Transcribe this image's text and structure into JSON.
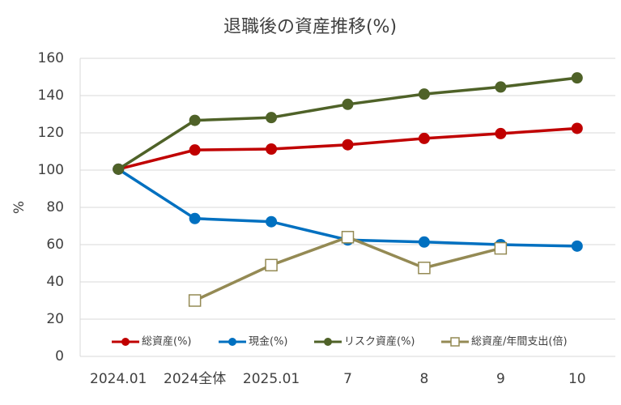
{
  "chart_data": {
    "type": "line",
    "title": "退職後の資産推移(%)",
    "y_label": "%",
    "categories": [
      "2024.01",
      "2024全体",
      "2025.01",
      "7",
      "8",
      "9",
      "10"
    ],
    "series": [
      {
        "name": "総資産(%)",
        "color": "#c00000",
        "marker": "circle",
        "values": [
          100.5,
          110.8,
          111.3,
          113.6,
          117,
          119.6,
          122.4
        ]
      },
      {
        "name": "現金(%)",
        "color": "#0070c0",
        "marker": "circle",
        "values": [
          100.5,
          74,
          72.3,
          62.5,
          61.4,
          60,
          59.2
        ]
      },
      {
        "name": "リスク資産(%)",
        "color": "#4f6228",
        "marker": "circle",
        "values": [
          100.5,
          126.7,
          128.2,
          135.3,
          140.8,
          144.6,
          149.5
        ]
      },
      {
        "name": "総資産/年間支出(倍)",
        "color": "#948a54",
        "marker": "square",
        "values": [
          null,
          30,
          49,
          64,
          47.5,
          58,
          null
        ]
      }
    ],
    "ylim": [
      0,
      160
    ],
    "yticks": [
      0,
      20,
      40,
      60,
      80,
      100,
      120,
      140,
      160
    ],
    "grid": true,
    "legend": "bottom"
  }
}
